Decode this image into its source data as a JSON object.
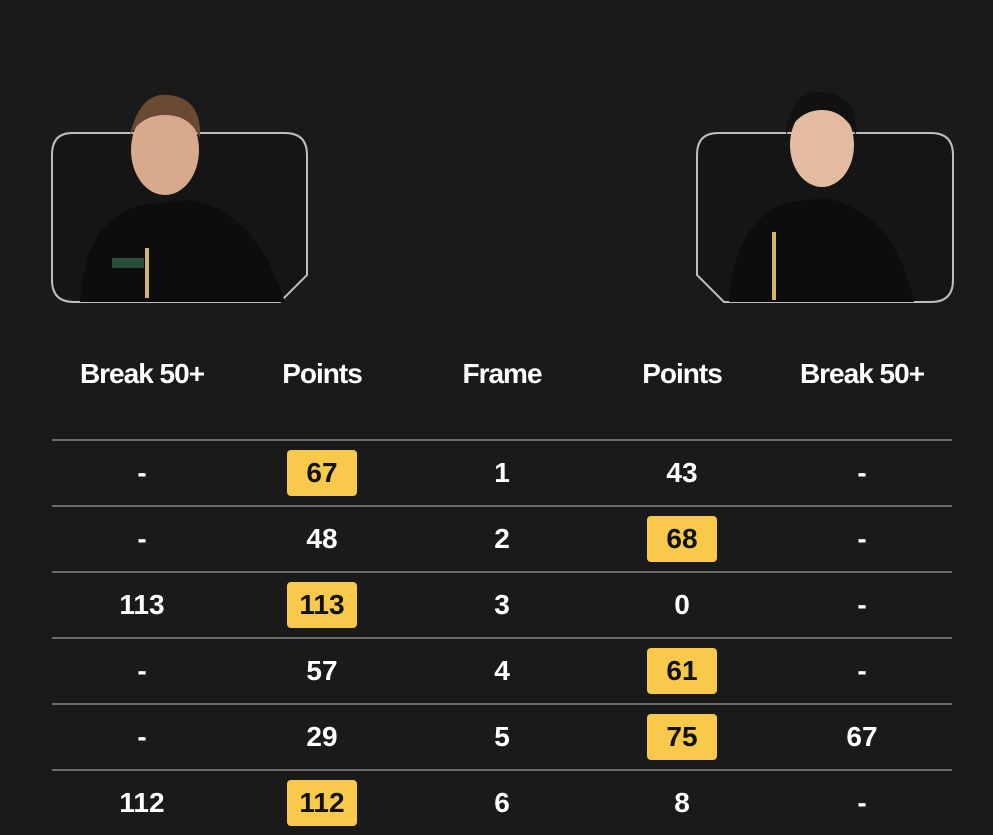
{
  "colors": {
    "background": "#1a1a1a",
    "winner_highlight": "#f8c94a"
  },
  "players": [
    {
      "side": "left",
      "photo": "player-photo"
    },
    {
      "side": "right",
      "photo": "player-photo"
    }
  ],
  "headers": [
    "Break 50+",
    "Points",
    "Frame",
    "Points",
    "Break 50+"
  ],
  "rows": [
    {
      "left_break": "-",
      "left_points": "67",
      "frame": "1",
      "right_points": "43",
      "right_break": "-",
      "winner": "left"
    },
    {
      "left_break": "-",
      "left_points": "48",
      "frame": "2",
      "right_points": "68",
      "right_break": "-",
      "winner": "right"
    },
    {
      "left_break": "113",
      "left_points": "113",
      "frame": "3",
      "right_points": "0",
      "right_break": "-",
      "winner": "left"
    },
    {
      "left_break": "-",
      "left_points": "57",
      "frame": "4",
      "right_points": "61",
      "right_break": "-",
      "winner": "right"
    },
    {
      "left_break": "-",
      "left_points": "29",
      "frame": "5",
      "right_points": "75",
      "right_break": "67",
      "winner": "right"
    },
    {
      "left_break": "112",
      "left_points": "112",
      "frame": "6",
      "right_points": "8",
      "right_break": "-",
      "winner": "left"
    }
  ]
}
